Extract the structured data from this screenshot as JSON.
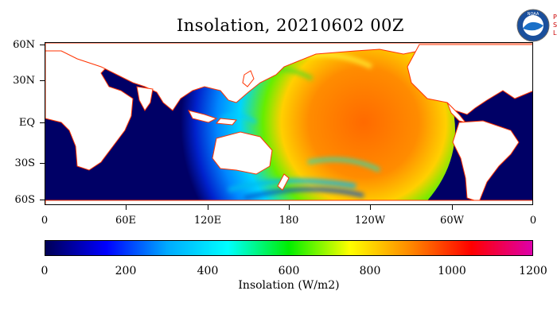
{
  "title": "Insolation, 20210602 00Z",
  "logo": {
    "icon": "noaa-logo-icon",
    "text": "NOAA",
    "side_text": [
      "P",
      "S",
      "L"
    ]
  },
  "map": {
    "lat_labels": [
      "60N",
      "30N",
      "EQ",
      "30S",
      "60S"
    ],
    "lon_labels": [
      "0",
      "60E",
      "120E",
      "180",
      "120W",
      "60W",
      "0"
    ],
    "land_color": "#ffffff",
    "no_data_color": "#000066",
    "coast_color": "#ff3300"
  },
  "colorbar": {
    "ticks": [
      "0",
      "200",
      "400",
      "600",
      "800",
      "1000",
      "1200"
    ],
    "label": "Insolation (W/m2)",
    "stops": [
      "#000055",
      "#0000ff",
      "#00aaff",
      "#00ffff",
      "#00ee00",
      "#ffff00",
      "#ff8800",
      "#ff0000",
      "#dd00aa"
    ]
  }
}
